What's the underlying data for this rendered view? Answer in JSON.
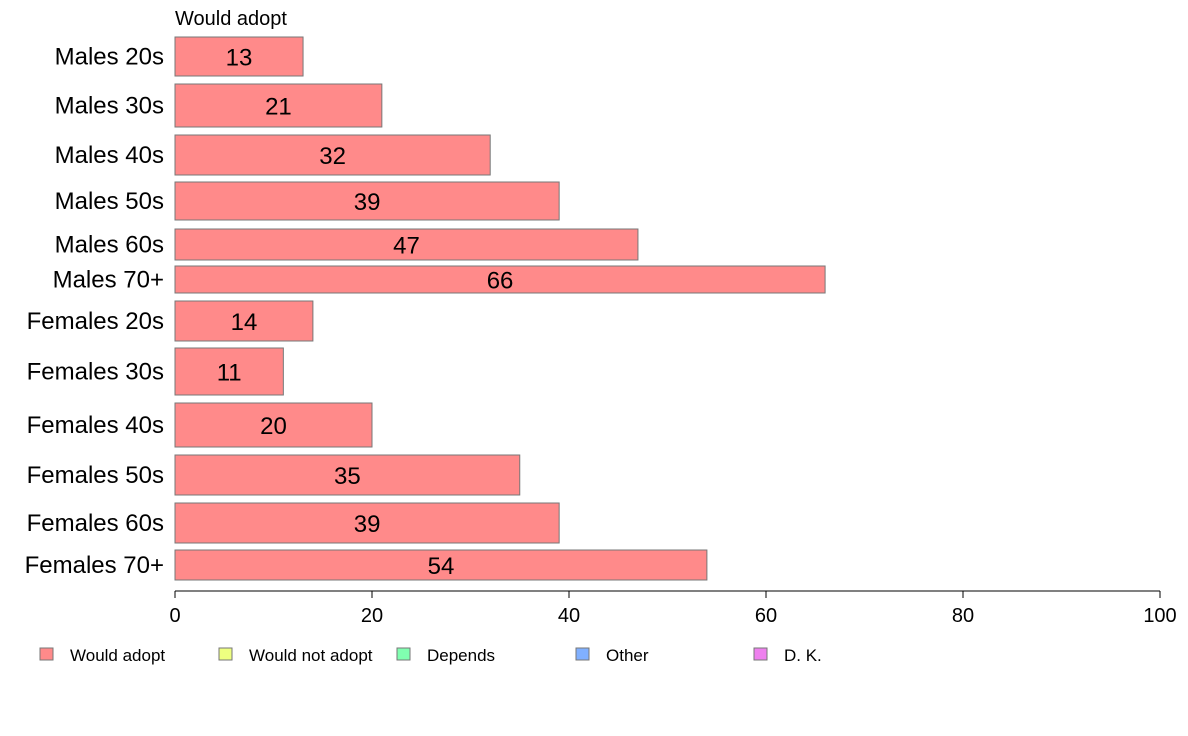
{
  "chart_data": {
    "type": "bar",
    "orientation": "horizontal",
    "series_title": "Would adopt",
    "categories": [
      "Males 20s",
      "Males 30s",
      "Males 40s",
      "Males 50s",
      "Males 60s",
      "Males 70+",
      "Females 20s",
      "Females 30s",
      "Females 40s",
      "Females 50s",
      "Females 60s",
      "Females 70+"
    ],
    "series": [
      {
        "name": "Would adopt",
        "color": "#ff8a8a",
        "values": [
          13,
          21,
          32,
          39,
          47,
          66,
          14,
          11,
          20,
          35,
          39,
          54
        ]
      }
    ],
    "xlim": [
      0,
      100
    ],
    "xticks": [
      0,
      20,
      40,
      60,
      80,
      100
    ],
    "grid": false,
    "legend_position": "bottom",
    "legend": [
      {
        "label": "Would adopt",
        "color": "#ff8a8a"
      },
      {
        "label": "Would not adopt",
        "color": "#eeff80"
      },
      {
        "label": "Depends",
        "color": "#80ffb0"
      },
      {
        "label": "Other",
        "color": "#80b0ff"
      },
      {
        "label": "D. K.",
        "color": "#ee80ee"
      }
    ]
  }
}
